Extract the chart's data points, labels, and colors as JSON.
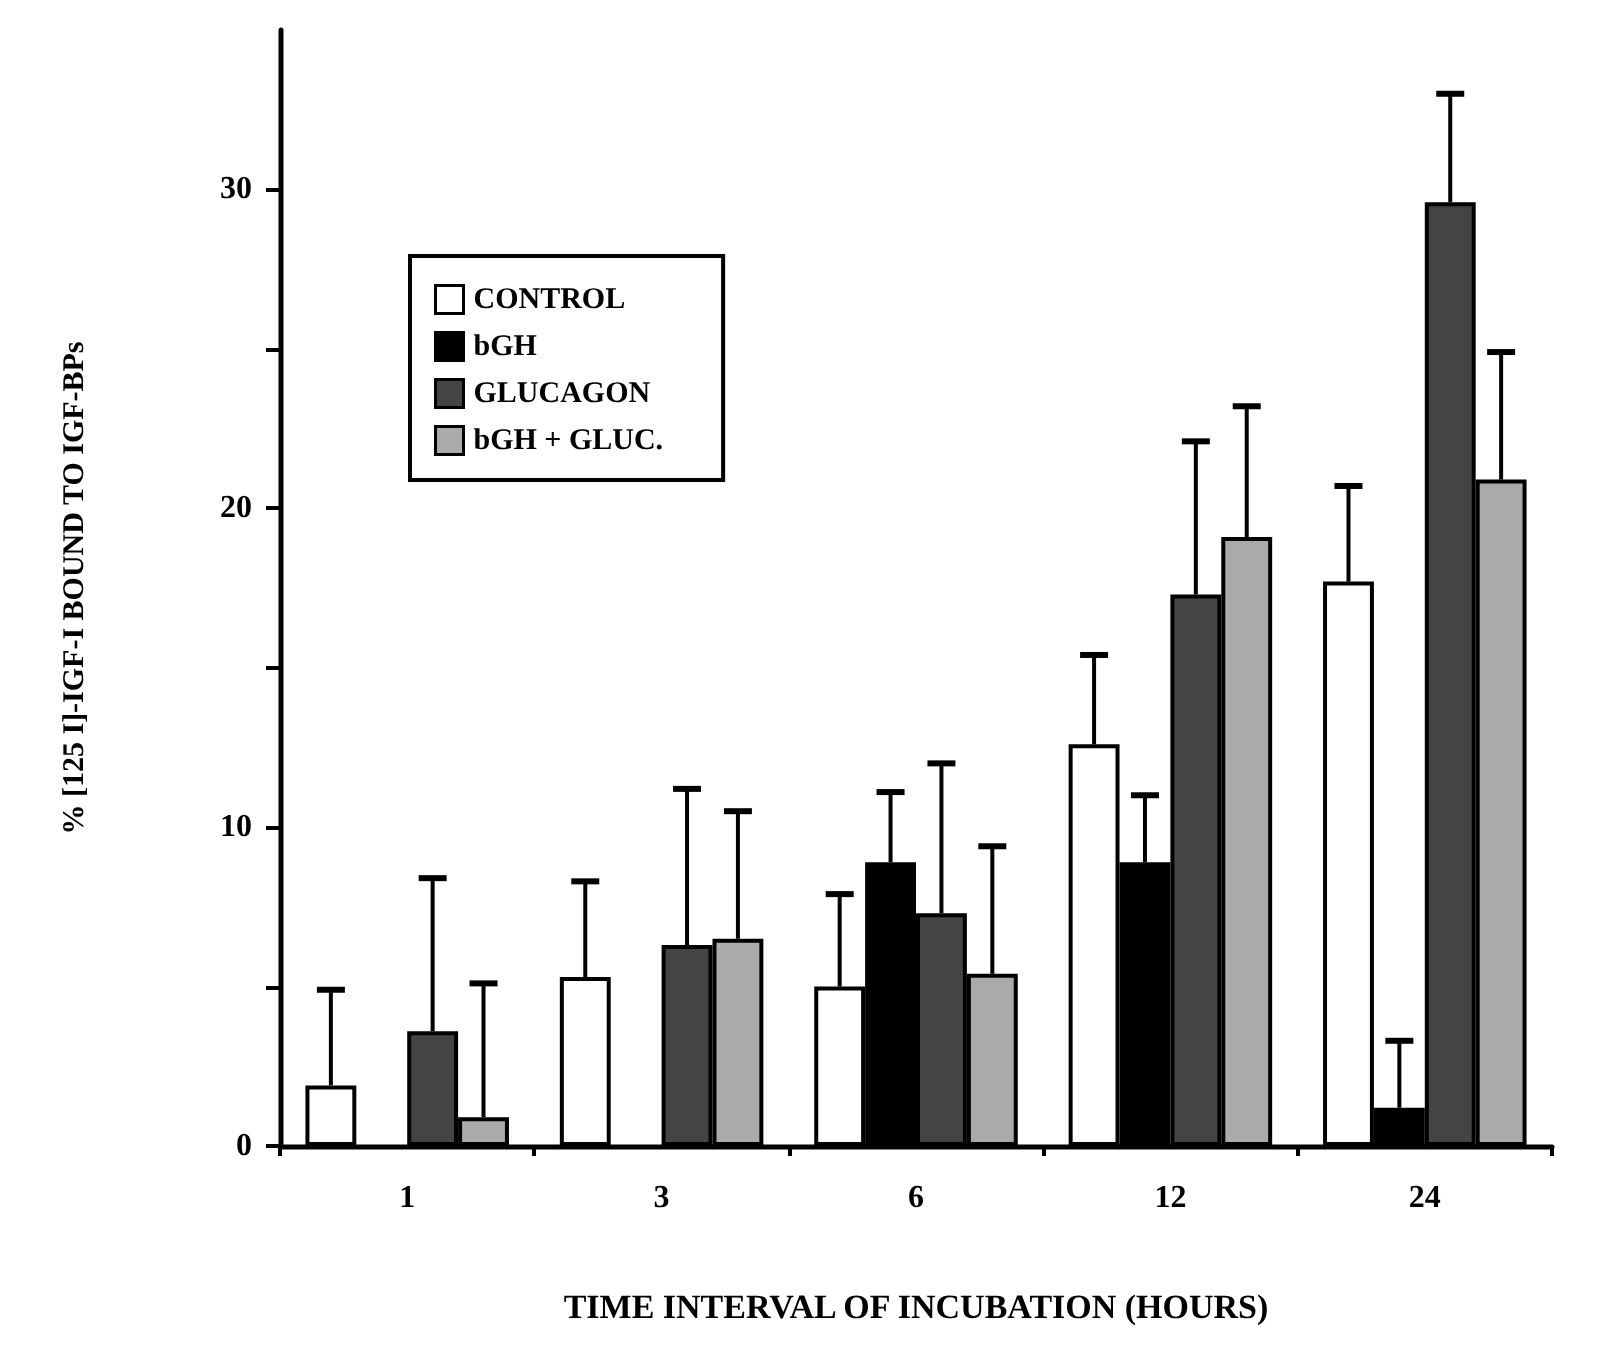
{
  "chart_data": {
    "type": "bar",
    "xlabel": "TIME INTERVAL OF INCUBATION (HOURS)",
    "ylabel": "% [125 I]-IGF-I BOUND TO IGF-BPs",
    "categories": [
      "1",
      "3",
      "6",
      "12",
      "24"
    ],
    "series": [
      {
        "name": "CONTROL",
        "color": "#ffffff",
        "values": [
          1.9,
          5.3,
          5.0,
          12.6,
          17.7
        ],
        "errors": [
          [
            1.9,
            4.9
          ],
          [
            5.3,
            8.3
          ],
          [
            5.0,
            7.9
          ],
          [
            12.6,
            15.4
          ],
          [
            17.7,
            20.7
          ]
        ]
      },
      {
        "name": "bGH",
        "color": "#000000",
        "values": [
          null,
          null,
          8.9,
          8.9,
          1.2
        ],
        "errors": [
          null,
          null,
          [
            8.9,
            11.1
          ],
          [
            8.9,
            11.0
          ],
          [
            1.2,
            3.3
          ]
        ]
      },
      {
        "name": "GLUCAGON",
        "color": "#444444",
        "values": [
          3.6,
          6.3,
          7.3,
          17.3,
          29.6
        ],
        "errors": [
          [
            3.6,
            8.4
          ],
          [
            6.3,
            11.2
          ],
          [
            7.3,
            12.0
          ],
          [
            17.3,
            22.1
          ],
          [
            29.6,
            33
          ]
        ]
      },
      {
        "name": "bGH + GLUC.",
        "color": "#aaaaaa",
        "values": [
          0.9,
          6.5,
          5.4,
          19.1,
          20.9
        ],
        "errors": [
          [
            0.9,
            5.1
          ],
          [
            6.5,
            10.5
          ],
          [
            5.4,
            9.4
          ],
          [
            19.1,
            23.2
          ],
          [
            20.9,
            24.9
          ]
        ]
      }
    ],
    "ylim": [
      0,
      35
    ],
    "yticks": [
      0,
      {
        "value": 5,
        "label": null
      },
      10,
      {
        "value": 15,
        "label": null
      },
      20,
      {
        "value": 25,
        "label": null
      },
      30
    ],
    "grid": false,
    "legend": "top left"
  }
}
